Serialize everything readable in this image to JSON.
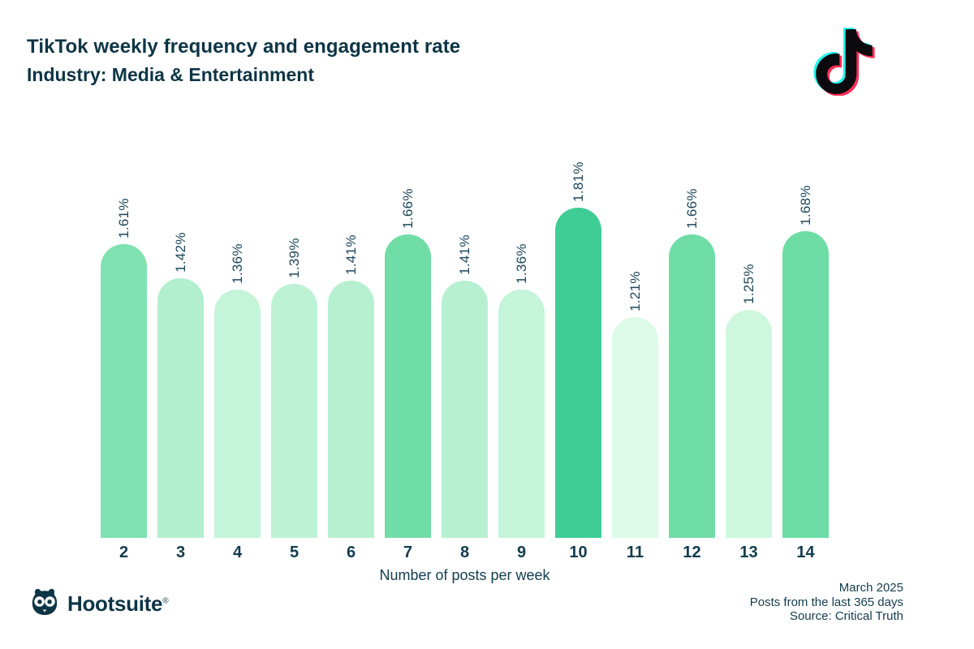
{
  "header": {
    "title": "TikTok weekly frequency and engagement rate",
    "subtitle": "Industry: Media & Entertainment"
  },
  "chart_data": {
    "type": "bar",
    "title": "TikTok weekly frequency and engagement rate",
    "subtitle": "Industry: Media & Entertainment",
    "categories": [
      "2",
      "3",
      "4",
      "5",
      "6",
      "7",
      "8",
      "9",
      "10",
      "11",
      "12",
      "13",
      "14"
    ],
    "values": [
      1.61,
      1.42,
      1.36,
      1.39,
      1.41,
      1.66,
      1.41,
      1.36,
      1.81,
      1.21,
      1.66,
      1.25,
      1.68
    ],
    "value_labels": [
      "1.61%",
      "1.42%",
      "1.36%",
      "1.39%",
      "1.41%",
      "1.66%",
      "1.41%",
      "1.36%",
      "1.81%",
      "1.21%",
      "1.66%",
      "1.25%",
      "1.68%"
    ],
    "bar_colors": [
      "#7fe2b0",
      "#b1efce",
      "#c4f4da",
      "#bdf2d5",
      "#b6f0d1",
      "#70dda6",
      "#b6f0d1",
      "#c4f4da",
      "#3fcd95",
      "#dcfae8",
      "#70dda6",
      "#cff7e0",
      "#6cdca4"
    ],
    "xlabel": "Number of posts per week",
    "ylim": [
      0,
      2.0
    ],
    "grid": false,
    "legend": null,
    "value_label_rotation": -90
  },
  "footer": {
    "brand": "Hootsuite",
    "registered": "®",
    "lines": [
      "March 2025",
      "Posts from the last 365 days",
      "Source: Critical Truth"
    ]
  },
  "colors": {
    "text_dark": "#0d3545",
    "text_label": "#1d4659",
    "bar_max": "#3fcd95",
    "bar_min": "#dcfae8",
    "tiktok_cyan": "#25f4ee",
    "tiktok_pink": "#fe2c55",
    "tiktok_black": "#0b0b0f"
  }
}
